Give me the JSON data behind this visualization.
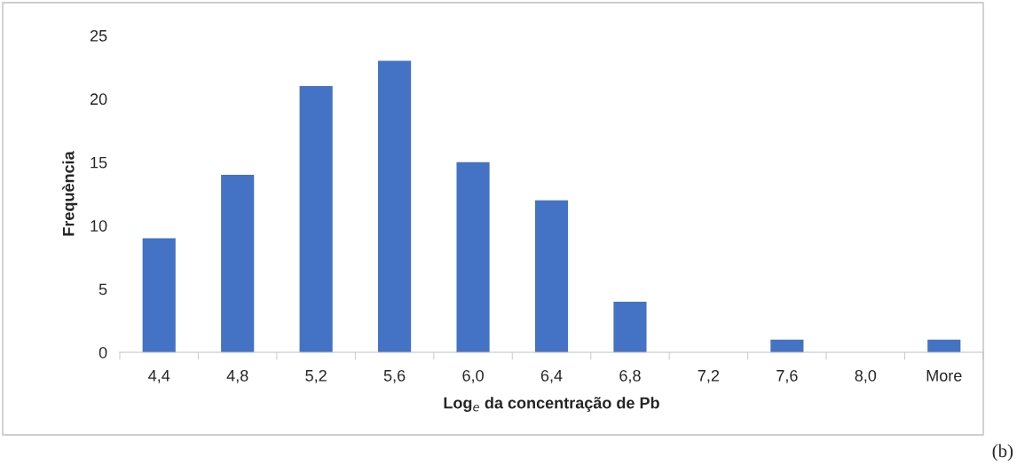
{
  "chart_data": {
    "type": "bar",
    "categories": [
      "4,4",
      "4,8",
      "5,2",
      "5,6",
      "6,0",
      "6,4",
      "6,8",
      "7,2",
      "7,6",
      "8,0",
      "More"
    ],
    "values": [
      9,
      14,
      21,
      23,
      15,
      12,
      4,
      0,
      1,
      0,
      1
    ],
    "color": "#4472c4",
    "xlabel": "Log$_{e}$ da concentração de Pb",
    "ylabel": "Frequència",
    "ylim": [
      0,
      25
    ],
    "yticks": [
      0,
      5,
      10,
      15,
      20,
      25
    ],
    "grid": false,
    "legend": false,
    "annotations": [
      "(b)"
    ]
  }
}
